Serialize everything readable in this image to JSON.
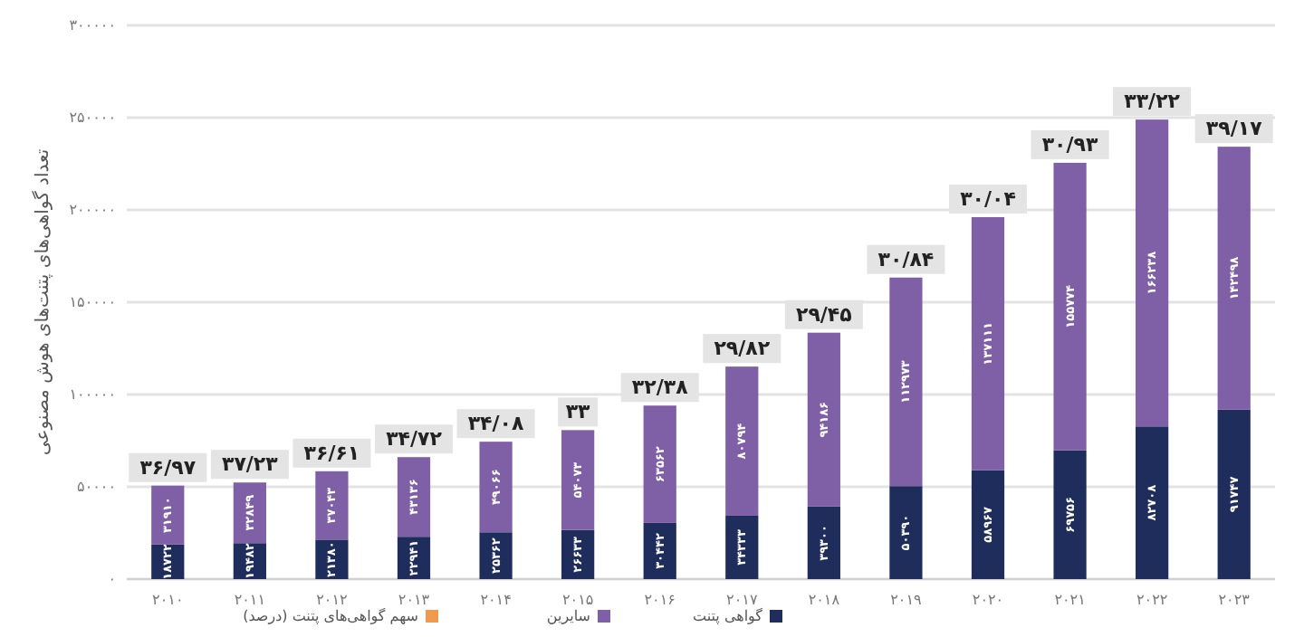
{
  "chart_data": {
    "type": "bar",
    "stacked": true,
    "ylabel": "تعداد گواهی‌های پتنت‌های هوش مصنوعی",
    "categories": [
      "۲۰۱۰",
      "۲۰۱۱",
      "۲۰۱۲",
      "۲۰۱۳",
      "۲۰۱۴",
      "۲۰۱۵",
      "۲۰۱۶",
      "۲۰۱۷",
      "۲۰۱۸",
      "۲۰۱۹",
      "۲۰۲۰",
      "۲۰۲۱",
      "۲۰۲۲",
      "۲۰۲۳"
    ],
    "series": [
      {
        "name": "گواهی پتنت",
        "color": "#1f2d5c",
        "values": [
          18722,
          19482,
          21380,
          22941,
          25362,
          26633,
          30442,
          34333,
          39300,
          50390,
          58967,
          69756,
          82708,
          91747
        ],
        "value_labels": [
          "۱۸۷۲۲",
          "۱۹۴۸۲",
          "۲۱۳۸۰",
          "۲۲۹۴۱",
          "۲۵۳۶۲",
          "۲۶۶۳۳",
          "۳۰۴۴۲",
          "۳۴۳۳۳",
          "۳۹۳۰۰",
          "۵۰۳۹۰",
          "۵۸۹۶۷",
          "۶۹۷۵۶",
          "۸۲۷۰۸",
          "۹۱۷۴۷"
        ]
      },
      {
        "name": "سایرین",
        "color": "#7f5fa6",
        "values": [
          31910,
          32849,
          37043,
          43136,
          49066,
          54073,
          63562,
          80794,
          94186,
          112973,
          137111,
          155774,
          166238,
          142498
        ],
        "value_labels": [
          "۳۱۹۱۰",
          "۳۲۸۴۹",
          "۳۷۰۴۳",
          "۴۳۱۳۶",
          "۴۹۰۶۶",
          "۵۴۰۷۳",
          "۶۳۵۶۲",
          "۸۰۷۹۴",
          "۹۴۱۸۶",
          "۱۱۲۹۷۳",
          "۱۳۷۱۱۱",
          "۱۵۵۷۷۴",
          "۱۶۶۲۳۸",
          "۱۴۲۴۹۸"
        ]
      },
      {
        "name": "سهم گواهی‌های پتنت (درصد)",
        "color": "#ef9a4e",
        "values": [
          null,
          null,
          null,
          null,
          null,
          null,
          null,
          null,
          null,
          null,
          null,
          null,
          null,
          null
        ]
      }
    ],
    "annotations": [
      {
        "text": "۳۶/۹۷",
        "x": "۲۰۱۰",
        "y": 50632
      },
      {
        "text": "۳۷/۲۳",
        "x": "۲۰۱۱",
        "y": 52331
      },
      {
        "text": "۳۶/۶۱",
        "x": "۲۰۱۲",
        "y": 58423
      },
      {
        "text": "۳۴/۷۲",
        "x": "۲۰۱۳",
        "y": 66077
      },
      {
        "text": "۳۴/۰۸",
        "x": "۲۰۱۴",
        "y": 74428
      },
      {
        "text": "۳۳",
        "x": "۲۰۱۵",
        "y": 80706
      },
      {
        "text": "۳۲/۳۸",
        "x": "۲۰۱۶",
        "y": 94004
      },
      {
        "text": "۲۹/۸۲",
        "x": "۲۰۱۷",
        "y": 115127
      },
      {
        "text": "۲۹/۴۵",
        "x": "۲۰۱۸",
        "y": 133486
      },
      {
        "text": "۳۰/۸۴",
        "x": "۲۰۱۹",
        "y": 163363
      },
      {
        "text": "۳۰/۰۴",
        "x": "۲۰۲۰",
        "y": 196078
      },
      {
        "text": "۳۰/۹۳",
        "x": "۲۰۲۱",
        "y": 225530
      },
      {
        "text": "۳۳/۲۲",
        "x": "۲۰۲۲",
        "y": 248946
      },
      {
        "text": "۳۹/۱۷",
        "x": "۲۰۲۳",
        "y": 234245
      }
    ],
    "ylim": [
      0,
      300000
    ],
    "yticks": [
      {
        "value": 0,
        "label": "۰"
      },
      {
        "value": 50000,
        "label": "۵۰۰۰۰"
      },
      {
        "value": 100000,
        "label": "۱۰۰۰۰۰"
      },
      {
        "value": 150000,
        "label": "۱۵۰۰۰۰"
      },
      {
        "value": 200000,
        "label": "۲۰۰۰۰۰"
      },
      {
        "value": 250000,
        "label": "۲۵۰۰۰۰"
      },
      {
        "value": 300000,
        "label": "۳۰۰۰۰۰"
      }
    ],
    "grid": "y",
    "legend": "bottom"
  }
}
